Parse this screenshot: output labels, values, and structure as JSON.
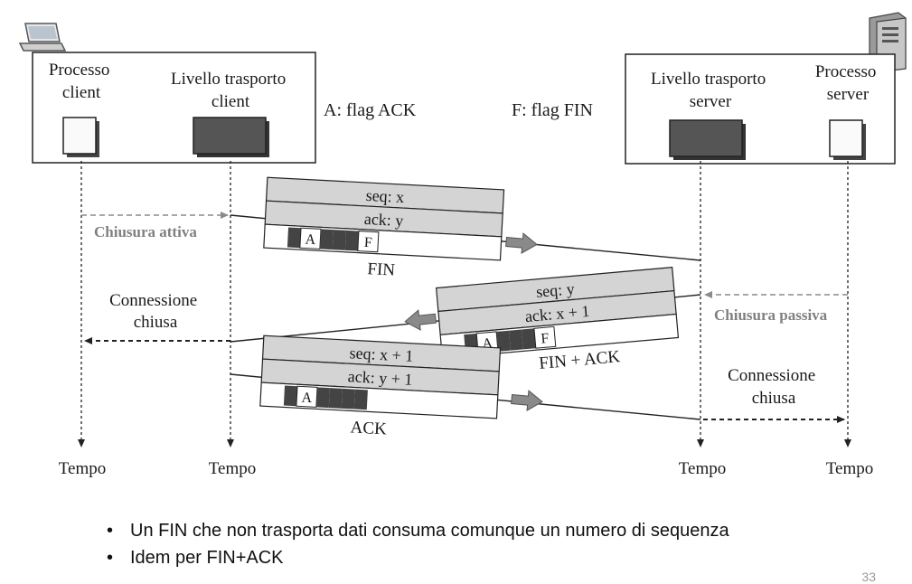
{
  "diagram": {
    "client_process_label": [
      "Processo",
      "client"
    ],
    "client_transport_label": [
      "Livello trasporto",
      "client"
    ],
    "server_transport_label": [
      "Livello trasporto",
      "server"
    ],
    "server_process_label": [
      "Processo",
      "server"
    ],
    "legend_ack": "A: flag ACK",
    "legend_fin": "F: flag FIN",
    "active_close": "Chiusura attiva",
    "passive_close": "Chiusura passiva",
    "connection_closed_client": [
      "Connessione",
      "chiusa"
    ],
    "connection_closed_server": [
      "Connessione",
      "chiusa"
    ],
    "time_labels": [
      "Tempo",
      "Tempo",
      "Tempo",
      "Tempo"
    ],
    "segments": [
      {
        "seq": "seq: x",
        "ack": "ack: y",
        "flag_a": "A",
        "flag_f": "F",
        "name": "FIN"
      },
      {
        "seq": "seq: y",
        "ack": "ack: x + 1",
        "flag_a": "A",
        "flag_f": "F",
        "name": "FIN + ACK"
      },
      {
        "seq": "seq: x + 1",
        "ack": "ack: y + 1",
        "flag_a": "A",
        "flag_f": "",
        "name": "ACK"
      }
    ]
  },
  "bullets": [
    "Un FIN che non trasporta dati consuma comunque un numero di sequenza",
    "Idem per FIN+ACK"
  ],
  "page_number": "33",
  "colors": {
    "box_gray": "#d4d4d4",
    "dark_block": "#555555",
    "arrow_gray": "#8a8a8a"
  }
}
